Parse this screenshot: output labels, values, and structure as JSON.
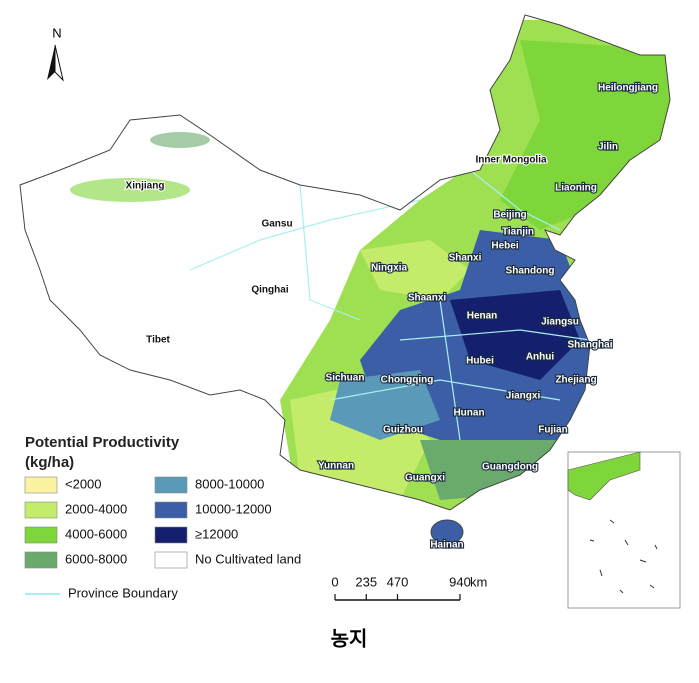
{
  "north": "N",
  "provinces": [
    "Heilongjiang",
    "Jilin",
    "Inner Mongolia",
    "Liaoning",
    "Xinjiang",
    "Beijing",
    "Tianjin",
    "Gansu",
    "Hebei",
    "Shanxi",
    "Shandong",
    "Ningxia",
    "Qinghai",
    "Shaanxi",
    "Henan",
    "Jiangsu",
    "Tibet",
    "Shanghai",
    "Hubei",
    "Anhui",
    "Sichuan",
    "Chongqing",
    "Zhejiang",
    "Jiangxi",
    "Hunan",
    "Guizhou",
    "Fujian",
    "Yunnan",
    "Guangdong",
    "Guangxi",
    "Hainan"
  ],
  "legend": {
    "title": "Potential Productivity",
    "unit": "(kg/ha)",
    "items": [
      {
        "label": "<2000",
        "color": "#fbf3a0"
      },
      {
        "label": "2000-4000",
        "color": "#c4ec6a"
      },
      {
        "label": "4000-6000",
        "color": "#7ed63a"
      },
      {
        "label": "6000-8000",
        "color": "#6aaa6c"
      },
      {
        "label": "8000-10000",
        "color": "#5a9ab8"
      },
      {
        "label": "10000-12000",
        "color": "#3b5ea6"
      },
      {
        "label": "≥12000",
        "color": "#14206e"
      },
      {
        "label": "No Cultivated land",
        "color": "#ffffff"
      }
    ],
    "boundary": "Province Boundary"
  },
  "scale_bar": {
    "ticks": [
      0,
      235,
      470,
      940
    ],
    "unit": "km"
  },
  "caption": "농지"
}
